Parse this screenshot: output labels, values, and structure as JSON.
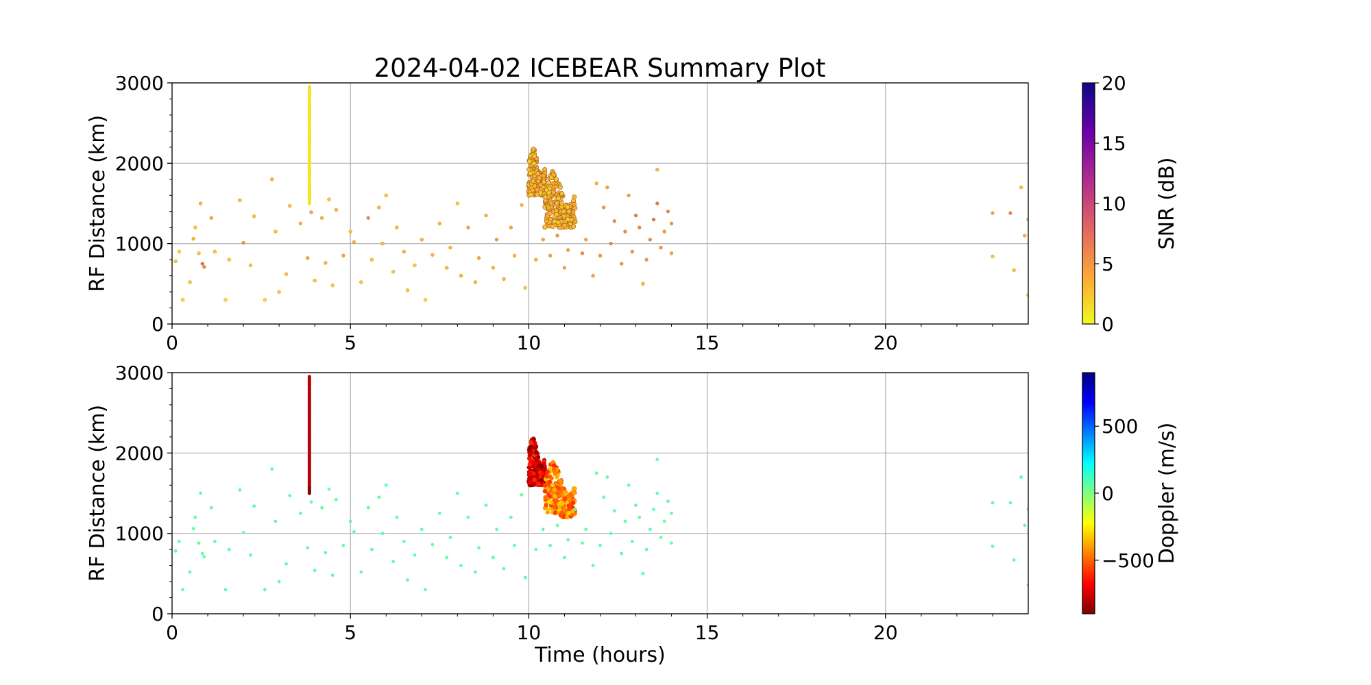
{
  "figure": {
    "title": "2024-04-02 ICEBEAR Summary Plot",
    "background": "#ffffff",
    "grid_color": "#b0b0b0"
  },
  "chart_data": [
    {
      "type": "scatter",
      "name": "snr-panel",
      "title": "2024-04-02 ICEBEAR Summary Plot",
      "xlabel": "",
      "ylabel": "RF Distance (km)",
      "xlim": [
        0,
        24
      ],
      "ylim": [
        0,
        3000
      ],
      "xticks": [
        0,
        5,
        10,
        15,
        20
      ],
      "yticks": [
        0,
        1000,
        2000,
        3000
      ],
      "grid": true,
      "color_variable": "SNR (dB)",
      "colorbar": {
        "label": "SNR (dB)",
        "range": [
          0,
          20
        ],
        "ticks": [
          0,
          5,
          10,
          15,
          20
        ],
        "colormap": "plasma_r",
        "colors": [
          "#f0f921",
          "#fca636",
          "#e16462",
          "#b12a90",
          "#6a00a8",
          "#0d0887"
        ]
      },
      "features": [
        {
          "kind": "streak",
          "x": 3.85,
          "y_range": [
            1500,
            2950
          ],
          "c": 1
        },
        {
          "kind": "cluster",
          "x_range": [
            10.0,
            10.45
          ],
          "y_range": [
            1600,
            2200
          ],
          "c": 3
        },
        {
          "kind": "cluster",
          "x_range": [
            10.45,
            11.3
          ],
          "y_range": [
            1200,
            1900
          ],
          "c": 3
        }
      ],
      "points": [
        [
          0.1,
          780,
          2
        ],
        [
          0.2,
          900,
          1
        ],
        [
          0.3,
          300,
          1
        ],
        [
          0.5,
          520,
          2
        ],
        [
          0.6,
          1060,
          3
        ],
        [
          0.65,
          1200,
          2
        ],
        [
          0.75,
          880,
          2
        ],
        [
          0.8,
          1500,
          3
        ],
        [
          0.85,
          750,
          8
        ],
        [
          0.9,
          710,
          6
        ],
        [
          1.1,
          1320,
          4
        ],
        [
          1.2,
          900,
          2
        ],
        [
          1.5,
          300,
          1
        ],
        [
          1.6,
          800,
          2
        ],
        [
          1.9,
          1540,
          3
        ],
        [
          2.0,
          1010,
          5
        ],
        [
          2.2,
          730,
          2
        ],
        [
          2.3,
          1340,
          2
        ],
        [
          2.6,
          300,
          1
        ],
        [
          2.8,
          1800,
          3
        ],
        [
          2.9,
          1150,
          2
        ],
        [
          3.0,
          400,
          2
        ],
        [
          3.2,
          620,
          2
        ],
        [
          3.3,
          1470,
          2
        ],
        [
          3.6,
          1250,
          3
        ],
        [
          3.8,
          820,
          4
        ],
        [
          3.9,
          1390,
          4
        ],
        [
          4.0,
          540,
          2
        ],
        [
          4.2,
          1320,
          3
        ],
        [
          4.3,
          760,
          3
        ],
        [
          4.4,
          1550,
          2
        ],
        [
          4.5,
          480,
          2
        ],
        [
          4.6,
          1420,
          3
        ],
        [
          4.8,
          850,
          4
        ],
        [
          5.0,
          1150,
          2
        ],
        [
          5.1,
          1020,
          3
        ],
        [
          5.3,
          520,
          2
        ],
        [
          5.5,
          1320,
          6
        ],
        [
          5.6,
          800,
          2
        ],
        [
          5.8,
          1450,
          3
        ],
        [
          5.9,
          1000,
          3
        ],
        [
          6.0,
          1600,
          2
        ],
        [
          6.2,
          650,
          2
        ],
        [
          6.3,
          1200,
          3
        ],
        [
          6.5,
          900,
          3
        ],
        [
          6.6,
          420,
          2
        ],
        [
          6.8,
          730,
          2
        ],
        [
          7.0,
          1050,
          3
        ],
        [
          7.1,
          300,
          1
        ],
        [
          7.3,
          860,
          3
        ],
        [
          7.5,
          1250,
          3
        ],
        [
          7.7,
          700,
          3
        ],
        [
          7.8,
          950,
          3
        ],
        [
          8.0,
          1500,
          2
        ],
        [
          8.1,
          600,
          3
        ],
        [
          8.3,
          1200,
          4
        ],
        [
          8.5,
          520,
          3
        ],
        [
          8.6,
          820,
          4
        ],
        [
          8.8,
          1350,
          3
        ],
        [
          9.0,
          700,
          3
        ],
        [
          9.1,
          1050,
          5
        ],
        [
          9.3,
          560,
          3
        ],
        [
          9.5,
          1200,
          4
        ],
        [
          9.6,
          850,
          3
        ],
        [
          9.8,
          1480,
          3
        ],
        [
          9.9,
          450,
          2
        ],
        [
          10.2,
          800,
          3
        ],
        [
          10.4,
          1050,
          4
        ],
        [
          10.6,
          850,
          4
        ],
        [
          10.8,
          1100,
          5
        ],
        [
          11.0,
          700,
          4
        ],
        [
          11.1,
          920,
          4
        ],
        [
          11.3,
          1300,
          5
        ],
        [
          11.5,
          880,
          6
        ],
        [
          11.6,
          1050,
          4
        ],
        [
          11.8,
          600,
          4
        ],
        [
          12.0,
          850,
          5
        ],
        [
          12.1,
          1450,
          5
        ],
        [
          12.3,
          1000,
          6
        ],
        [
          12.4,
          1280,
          6
        ],
        [
          12.6,
          750,
          5
        ],
        [
          12.7,
          1150,
          6
        ],
        [
          12.9,
          900,
          5
        ],
        [
          13.0,
          1350,
          7
        ],
        [
          13.1,
          1200,
          6
        ],
        [
          13.3,
          800,
          5
        ],
        [
          13.4,
          1050,
          6
        ],
        [
          13.5,
          1300,
          8
        ],
        [
          13.6,
          1500,
          7
        ],
        [
          13.7,
          950,
          5
        ],
        [
          13.8,
          1150,
          5
        ],
        [
          13.9,
          1400,
          6
        ],
        [
          14.0,
          1250,
          5
        ],
        [
          14.0,
          880,
          4
        ],
        [
          13.2,
          500,
          3
        ],
        [
          12.8,
          1600,
          4
        ],
        [
          12.2,
          1700,
          4
        ],
        [
          11.9,
          1750,
          3
        ],
        [
          13.6,
          1920,
          3
        ],
        [
          23.0,
          1380,
          4
        ],
        [
          23.0,
          840,
          2
        ],
        [
          23.5,
          1380,
          6
        ],
        [
          23.6,
          670,
          2
        ],
        [
          23.8,
          1700,
          2
        ],
        [
          23.9,
          1100,
          3
        ],
        [
          24.0,
          360,
          2
        ],
        [
          24.0,
          1300,
          3
        ]
      ]
    },
    {
      "type": "scatter",
      "name": "doppler-panel",
      "title": "",
      "xlabel": "Time (hours)",
      "ylabel": "RF Distance (km)",
      "xlim": [
        0,
        24
      ],
      "ylim": [
        0,
        3000
      ],
      "xticks": [
        0,
        5,
        10,
        15,
        20
      ],
      "yticks": [
        0,
        1000,
        2000,
        3000
      ],
      "grid": true,
      "color_variable": "Doppler (m/s)",
      "colorbar": {
        "label": "Doppler (m/s)",
        "range": [
          -900,
          900
        ],
        "ticks": [
          -500,
          0,
          500
        ],
        "tick_labels": [
          "−500",
          "0",
          "500"
        ],
        "colormap": "jet_r",
        "colors": [
          "#800000",
          "#ff0000",
          "#ff8000",
          "#ffff00",
          "#80ff80",
          "#00ffff",
          "#0080ff",
          "#0000ff",
          "#000080"
        ]
      },
      "features": [
        {
          "kind": "streak",
          "x": 3.85,
          "y_range": [
            1500,
            2950
          ],
          "c": -800
        },
        {
          "kind": "cluster",
          "x_range": [
            10.0,
            10.45
          ],
          "y_range": [
            1600,
            2200
          ],
          "c": -750
        },
        {
          "kind": "cluster",
          "x_range": [
            10.45,
            11.3
          ],
          "y_range": [
            1200,
            1900
          ],
          "c": -450
        }
      ],
      "points": [
        [
          0.1,
          780,
          0
        ],
        [
          0.2,
          900,
          0
        ],
        [
          0.3,
          300,
          0
        ],
        [
          0.5,
          520,
          0
        ],
        [
          0.6,
          1060,
          0
        ],
        [
          0.65,
          1200,
          0
        ],
        [
          0.75,
          880,
          0
        ],
        [
          0.8,
          1500,
          0
        ],
        [
          0.85,
          750,
          0
        ],
        [
          0.9,
          710,
          0
        ],
        [
          1.1,
          1320,
          0
        ],
        [
          1.2,
          900,
          0
        ],
        [
          1.5,
          300,
          0
        ],
        [
          1.6,
          800,
          0
        ],
        [
          1.9,
          1540,
          0
        ],
        [
          2.0,
          1010,
          0
        ],
        [
          2.2,
          730,
          0
        ],
        [
          2.3,
          1340,
          0
        ],
        [
          2.6,
          300,
          0
        ],
        [
          2.8,
          1800,
          0
        ],
        [
          2.9,
          1150,
          0
        ],
        [
          3.0,
          400,
          0
        ],
        [
          3.2,
          620,
          0
        ],
        [
          3.3,
          1470,
          0
        ],
        [
          3.6,
          1250,
          0
        ],
        [
          3.8,
          820,
          0
        ],
        [
          3.9,
          1390,
          0
        ],
        [
          4.0,
          540,
          0
        ],
        [
          4.2,
          1320,
          0
        ],
        [
          4.3,
          760,
          0
        ],
        [
          4.4,
          1550,
          0
        ],
        [
          4.5,
          480,
          0
        ],
        [
          4.6,
          1420,
          0
        ],
        [
          4.8,
          850,
          0
        ],
        [
          5.0,
          1150,
          0
        ],
        [
          5.1,
          1020,
          0
        ],
        [
          5.3,
          520,
          0
        ],
        [
          5.5,
          1320,
          0
        ],
        [
          5.6,
          800,
          0
        ],
        [
          5.8,
          1450,
          0
        ],
        [
          5.9,
          1000,
          0
        ],
        [
          6.0,
          1600,
          0
        ],
        [
          6.2,
          650,
          0
        ],
        [
          6.3,
          1200,
          0
        ],
        [
          6.5,
          900,
          0
        ],
        [
          6.6,
          420,
          0
        ],
        [
          6.8,
          730,
          0
        ],
        [
          7.0,
          1050,
          0
        ],
        [
          7.1,
          300,
          0
        ],
        [
          7.3,
          860,
          0
        ],
        [
          7.5,
          1250,
          0
        ],
        [
          7.7,
          700,
          0
        ],
        [
          7.8,
          950,
          0
        ],
        [
          8.0,
          1500,
          0
        ],
        [
          8.1,
          600,
          0
        ],
        [
          8.3,
          1200,
          0
        ],
        [
          8.5,
          520,
          0
        ],
        [
          8.6,
          820,
          0
        ],
        [
          8.8,
          1350,
          0
        ],
        [
          9.0,
          700,
          0
        ],
        [
          9.1,
          1050,
          0
        ],
        [
          9.3,
          560,
          0
        ],
        [
          9.5,
          1200,
          0
        ],
        [
          9.6,
          850,
          0
        ],
        [
          9.8,
          1480,
          0
        ],
        [
          9.9,
          450,
          0
        ],
        [
          10.2,
          800,
          0
        ],
        [
          10.4,
          1050,
          0
        ],
        [
          10.6,
          850,
          0
        ],
        [
          10.8,
          1100,
          0
        ],
        [
          11.0,
          700,
          0
        ],
        [
          11.1,
          920,
          0
        ],
        [
          11.3,
          1300,
          0
        ],
        [
          11.5,
          880,
          0
        ],
        [
          11.6,
          1050,
          0
        ],
        [
          11.8,
          600,
          0
        ],
        [
          12.0,
          850,
          0
        ],
        [
          12.1,
          1450,
          0
        ],
        [
          12.3,
          1000,
          0
        ],
        [
          12.4,
          1280,
          0
        ],
        [
          12.6,
          750,
          0
        ],
        [
          12.7,
          1150,
          0
        ],
        [
          12.9,
          900,
          0
        ],
        [
          13.0,
          1350,
          0
        ],
        [
          13.1,
          1200,
          0
        ],
        [
          13.3,
          800,
          0
        ],
        [
          13.4,
          1050,
          0
        ],
        [
          13.5,
          1300,
          0
        ],
        [
          13.6,
          1500,
          0
        ],
        [
          13.7,
          950,
          0
        ],
        [
          13.8,
          1150,
          0
        ],
        [
          13.9,
          1400,
          0
        ],
        [
          14.0,
          1250,
          0
        ],
        [
          14.0,
          880,
          0
        ],
        [
          13.2,
          500,
          0
        ],
        [
          12.8,
          1600,
          0
        ],
        [
          12.2,
          1700,
          0
        ],
        [
          11.9,
          1750,
          0
        ],
        [
          13.6,
          1920,
          0
        ],
        [
          23.0,
          1380,
          0
        ],
        [
          23.0,
          840,
          0
        ],
        [
          23.5,
          1380,
          0
        ],
        [
          23.6,
          670,
          0
        ],
        [
          23.8,
          1700,
          0
        ],
        [
          23.9,
          1100,
          0
        ],
        [
          24.0,
          360,
          0
        ],
        [
          24.0,
          1300,
          0
        ]
      ]
    }
  ]
}
